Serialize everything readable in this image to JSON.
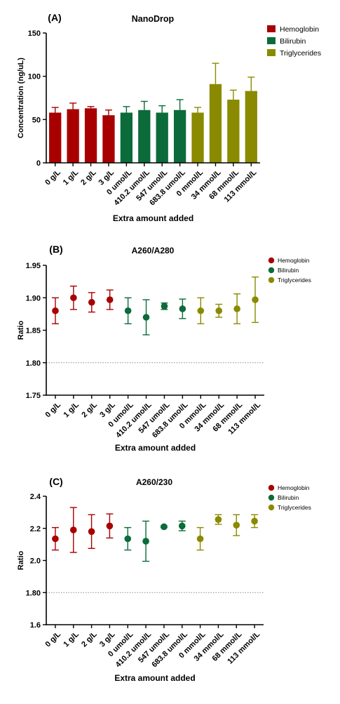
{
  "legend": {
    "entries": [
      {
        "label": "Hemoglobin",
        "color": "#a80000"
      },
      {
        "label": "Bilirubin",
        "color": "#0b6b3a"
      },
      {
        "label": "Triglycerides",
        "color": "#8a8a00"
      }
    ]
  },
  "chart_data": [
    {
      "type": "bar",
      "panel_label": "(A)",
      "title": "NanoDrop",
      "xlabel": "Extra amount added",
      "ylabel": "Concentration (ng/uL)",
      "ylim": [
        0,
        150
      ],
      "yticks": [
        "0",
        "50",
        "100",
        "150"
      ],
      "categories": [
        "0 g/L",
        "1 g/L",
        "2 g/L",
        "3 g/L",
        "0 umol/L",
        "410.2 umol/L",
        "547 umol/L",
        "683.8 umol/L",
        "0 mmol/L",
        "34 mmol/L",
        "68 mmol/L",
        "113 mmol/L"
      ],
      "values": [
        58,
        62,
        63,
        55,
        58,
        61,
        58,
        61,
        58,
        91,
        73,
        83
      ],
      "errors": [
        6,
        7,
        2,
        6,
        7,
        10,
        8,
        12,
        6,
        24,
        11,
        16
      ],
      "groups": [
        0,
        0,
        0,
        0,
        1,
        1,
        1,
        1,
        2,
        2,
        2,
        2
      ],
      "grid": false,
      "legend_position": "top-right"
    },
    {
      "type": "scatter",
      "panel_label": "(B)",
      "title": "A260/A280",
      "xlabel": "Extra amount added",
      "ylabel": "Ratio",
      "ylim": [
        1.75,
        1.95
      ],
      "yticks": [
        "1.75",
        "1.80",
        "1.85",
        "1.90",
        "1.95"
      ],
      "reference_line": 1.8,
      "categories": [
        "0 g/L",
        "1 g/L",
        "2 g/L",
        "3 g/L",
        "0 umol/L",
        "410.2 umol/L",
        "547 umol/L",
        "683.8 umol/L",
        "0 mmol/L",
        "34 mmol/L",
        "68 mmol/L",
        "113 mmol/L"
      ],
      "values": [
        1.88,
        1.9,
        1.893,
        1.897,
        1.88,
        1.87,
        1.887,
        1.883,
        1.88,
        1.88,
        1.883,
        1.897
      ],
      "errors": [
        0.02,
        0.018,
        0.015,
        0.015,
        0.02,
        0.027,
        0.005,
        0.015,
        0.02,
        0.01,
        0.023,
        0.035
      ],
      "groups": [
        0,
        0,
        0,
        0,
        1,
        1,
        1,
        1,
        2,
        2,
        2,
        2
      ],
      "grid": false,
      "legend_position": "top-right"
    },
    {
      "type": "scatter",
      "panel_label": "(C)",
      "title": "A260/230",
      "xlabel": "Extra amount added",
      "ylabel": "Ratio",
      "ylim": [
        1.6,
        2.4
      ],
      "yticks": [
        "1.6",
        "1.80",
        "2.0",
        "2.2",
        "2.4"
      ],
      "reference_line": 1.8,
      "categories": [
        "0 g/L",
        "1 g/L",
        "2 g/L",
        "3 g/L",
        "0 umol/L",
        "410.2 umol/L",
        "547 umol/L",
        "683.8 umol/L",
        "0 mmol/L",
        "34 mmol/L",
        "68 mmol/L",
        "113 mmol/L"
      ],
      "values": [
        2.135,
        2.19,
        2.18,
        2.215,
        2.135,
        2.12,
        2.21,
        2.215,
        2.135,
        2.255,
        2.22,
        2.245
      ],
      "errors": [
        0.07,
        0.14,
        0.105,
        0.075,
        0.07,
        0.125,
        0.005,
        0.03,
        0.07,
        0.03,
        0.065,
        0.04
      ],
      "groups": [
        0,
        0,
        0,
        0,
        1,
        1,
        1,
        1,
        2,
        2,
        2,
        2
      ],
      "grid": false,
      "legend_position": "top-right"
    }
  ]
}
